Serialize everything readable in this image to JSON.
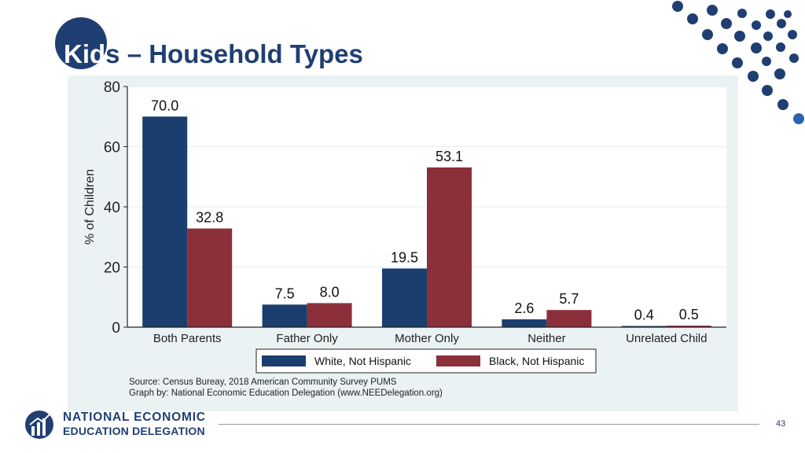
{
  "slide": {
    "title": "Kids – Household Types",
    "title_highlight": "Kid",
    "title_rest": "s – Household Types",
    "page_number": "43",
    "logo_line1": "NATIONAL ECONOMIC",
    "logo_line2": "EDUCATION DELEGATION",
    "colors": {
      "navy": "#1f3f73",
      "accent": "#2b64b1",
      "panel": "#eaf2f3"
    }
  },
  "chart_data": {
    "type": "bar",
    "title": "",
    "ylabel": "% of Children",
    "xlabel": "",
    "ylim": [
      0,
      80
    ],
    "yticks": [
      0,
      20,
      40,
      60,
      80
    ],
    "categories": [
      "Both Parents",
      "Father Only",
      "Mother Only",
      "Neither",
      "Unrelated Child"
    ],
    "series": [
      {
        "name": "White, Not Hispanic",
        "color": "#1a3e6e",
        "values": [
          70.0,
          7.5,
          19.5,
          2.6,
          0.4
        ]
      },
      {
        "name": "Black, Not Hispanic",
        "color": "#8b2f3b",
        "values": [
          32.8,
          8.0,
          53.1,
          5.7,
          0.5
        ]
      }
    ],
    "value_labels": [
      [
        "70.0",
        "7.5",
        "19.5",
        "2.6",
        "0.4"
      ],
      [
        "32.8",
        "8.0",
        "53.1",
        "5.7",
        "0.5"
      ]
    ],
    "legend_position": "bottom",
    "grid": true,
    "source_lines": [
      "Source: Census Bureay, 2018 American Community Survey PUMS",
      "Graph by: National Economic Education Delegation (www.NEEDelegation.org)"
    ]
  }
}
